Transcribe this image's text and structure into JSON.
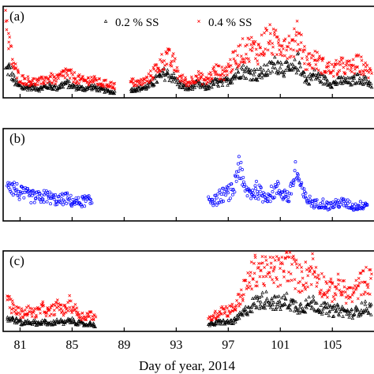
{
  "chart_data": [
    {
      "panel_label": "(a)",
      "type": "scatter",
      "xlabel": "",
      "ylabel": "",
      "xlim": [
        79.7,
        108.2
      ],
      "ylim": [
        0,
        100
      ],
      "legend_position": "top-center",
      "series": [
        {
          "name": "0.2 % SS",
          "marker": "triangle-open",
          "color": "#000000",
          "segments": [
            {
              "x": [
                79.9,
                80.2,
                80.5,
                80.8,
                81.2,
                81.8,
                82.5,
                83.2,
                83.8,
                84.5,
                85.2,
                85.9,
                86.5,
                87.2,
                87.8,
                88.3
              ],
              "y": [
                30,
                32,
                20,
                14,
                11,
                12,
                10,
                13,
                11,
                16,
                12,
                10,
                12,
                9,
                7,
                6
              ]
            },
            {
              "x": [
                89.5,
                90.2,
                90.8,
                91.5,
                92.2,
                92.8,
                93.3,
                93.9,
                94.6,
                95.3,
                96.0,
                96.6,
                97.3,
                98.0,
                98.7,
                99.3,
                100.0,
                100.7,
                101.3,
                101.9,
                102.4,
                103.0,
                103.6,
                104.3,
                105.0,
                105.7,
                106.4,
                107.0,
                107.6,
                108.0
              ],
              "y": [
                9,
                10,
                12,
                20,
                27,
                22,
                14,
                10,
                15,
                11,
                17,
                16,
                22,
                30,
                27,
                25,
                30,
                37,
                32,
                29,
                40,
                18,
                25,
                20,
                15,
                19,
                17,
                22,
                18,
                15
              ]
            }
          ]
        },
        {
          "name": "0.4 % SS",
          "marker": "x",
          "color": "#ff0000",
          "segments": [
            {
              "x": [
                79.9,
                80.2,
                80.5,
                80.8,
                81.2,
                81.8,
                82.5,
                83.2,
                83.8,
                84.5,
                85.2,
                85.9,
                86.5,
                87.2,
                87.8,
                88.3
              ],
              "y": [
                82,
                55,
                35,
                25,
                20,
                18,
                17,
                22,
                19,
                28,
                22,
                18,
                20,
                16,
                15,
                13
              ]
            },
            {
              "x": [
                89.5,
                90.2,
                90.8,
                91.5,
                92.2,
                92.8,
                93.3,
                93.9,
                94.6,
                95.3,
                96.0,
                96.6,
                97.3,
                98.0,
                98.7,
                99.3,
                100.0,
                100.7,
                101.3,
                101.9,
                102.4,
                103.0,
                103.6,
                104.3,
                105.0,
                105.7,
                106.4,
                107.0,
                107.6,
                108.0
              ],
              "y": [
                17,
                16,
                20,
                32,
                45,
                38,
                22,
                16,
                24,
                18,
                30,
                26,
                38,
                50,
                55,
                50,
                65,
                58,
                62,
                55,
                70,
                40,
                42,
                35,
                30,
                35,
                32,
                38,
                30,
                26
              ]
            }
          ]
        }
      ]
    },
    {
      "panel_label": "(b)",
      "type": "scatter",
      "xlim": [
        79.7,
        108.2
      ],
      "ylim": [
        0,
        100
      ],
      "series": [
        {
          "name": "",
          "marker": "circle-open",
          "color": "#0000ff",
          "segments": [
            {
              "x": [
                80.0,
                80.5,
                81.0,
                81.5,
                82.0,
                82.5,
                83.0,
                83.5,
                84.0,
                84.5,
                85.0,
                85.5,
                86.0,
                86.5
              ],
              "y": [
                45,
                36,
                30,
                28,
                26,
                25,
                27,
                24,
                22,
                25,
                21,
                20,
                22,
                21
              ]
            },
            {
              "x": [
                95.5,
                96.0,
                96.5,
                97.0,
                97.4,
                97.8,
                98.2,
                98.7,
                99.2,
                99.7,
                100.2,
                100.7,
                101.2,
                101.7,
                102.2,
                102.7,
                103.2,
                103.7,
                104.2,
                104.7,
                105.2,
                105.7,
                106.2,
                106.7,
                107.2,
                107.7
              ],
              "y": [
                25,
                22,
                28,
                30,
                33,
                65,
                35,
                30,
                34,
                27,
                28,
                35,
                30,
                25,
                55,
                30,
                22,
                18,
                20,
                16,
                18,
                20,
                18,
                15,
                17,
                19
              ]
            }
          ]
        }
      ]
    },
    {
      "panel_label": "(c)",
      "type": "scatter",
      "xlabel": "Day of year, 2014",
      "xlim": [
        79.7,
        108.2
      ],
      "ylim": [
        0,
        100
      ],
      "xticks": [
        81,
        85,
        89,
        93,
        97,
        101,
        105
      ],
      "series": [
        {
          "name": "0.2 % SS",
          "marker": "triangle-open",
          "color": "#000000",
          "segments": [
            {
              "x": [
                80.0,
                80.4,
                80.8,
                81.2,
                81.6,
                82.0,
                82.4,
                82.8,
                83.2,
                83.6,
                84.0,
                84.4,
                84.8,
                85.2,
                85.6,
                86.0,
                86.4,
                86.8
              ],
              "y": [
                16,
                15,
                13,
                10,
                12,
                11,
                10,
                12,
                9,
                11,
                13,
                10,
                14,
                12,
                10,
                8,
                10,
                7
              ]
            },
            {
              "x": [
                95.5,
                96.0,
                96.5,
                97.0,
                97.5,
                98.0,
                98.5,
                99.0,
                99.5,
                100.0,
                100.5,
                101.0,
                101.5,
                102.0,
                102.5,
                103.0,
                103.5,
                104.0,
                104.5,
                105.0,
                105.5,
                106.0,
                106.5,
                107.0,
                107.5,
                108.0
              ],
              "y": [
                8,
                10,
                12,
                11,
                13,
                20,
                28,
                35,
                38,
                40,
                36,
                34,
                38,
                33,
                30,
                32,
                36,
                30,
                28,
                25,
                27,
                24,
                22,
                26,
                30,
                28
              ]
            }
          ]
        },
        {
          "name": "0.4 % SS",
          "marker": "x",
          "color": "#ff0000",
          "segments": [
            {
              "x": [
                80.0,
                80.4,
                80.8,
                81.2,
                81.6,
                82.0,
                82.4,
                82.8,
                83.2,
                83.6,
                84.0,
                84.4,
                84.8,
                85.2,
                85.6,
                86.0,
                86.4,
                86.8
              ],
              "y": [
                42,
                30,
                25,
                22,
                26,
                23,
                24,
                30,
                22,
                28,
                32,
                25,
                35,
                28,
                20,
                18,
                22,
                15
              ]
            },
            {
              "x": [
                95.5,
                96.0,
                96.5,
                97.0,
                97.5,
                98.0,
                98.5,
                99.0,
                99.5,
                100.0,
                100.5,
                101.0,
                101.5,
                102.0,
                102.5,
                103.0,
                103.5,
                104.0,
                104.5,
                105.0,
                105.5,
                106.0,
                106.5,
                107.0,
                107.5,
                108.0
              ],
              "y": [
                15,
                20,
                28,
                25,
                30,
                45,
                60,
                75,
                80,
                70,
                78,
                72,
                85,
                76,
                65,
                70,
                80,
                62,
                55,
                50,
                58,
                48,
                45,
                55,
                65,
                60
              ]
            }
          ]
        }
      ]
    }
  ]
}
